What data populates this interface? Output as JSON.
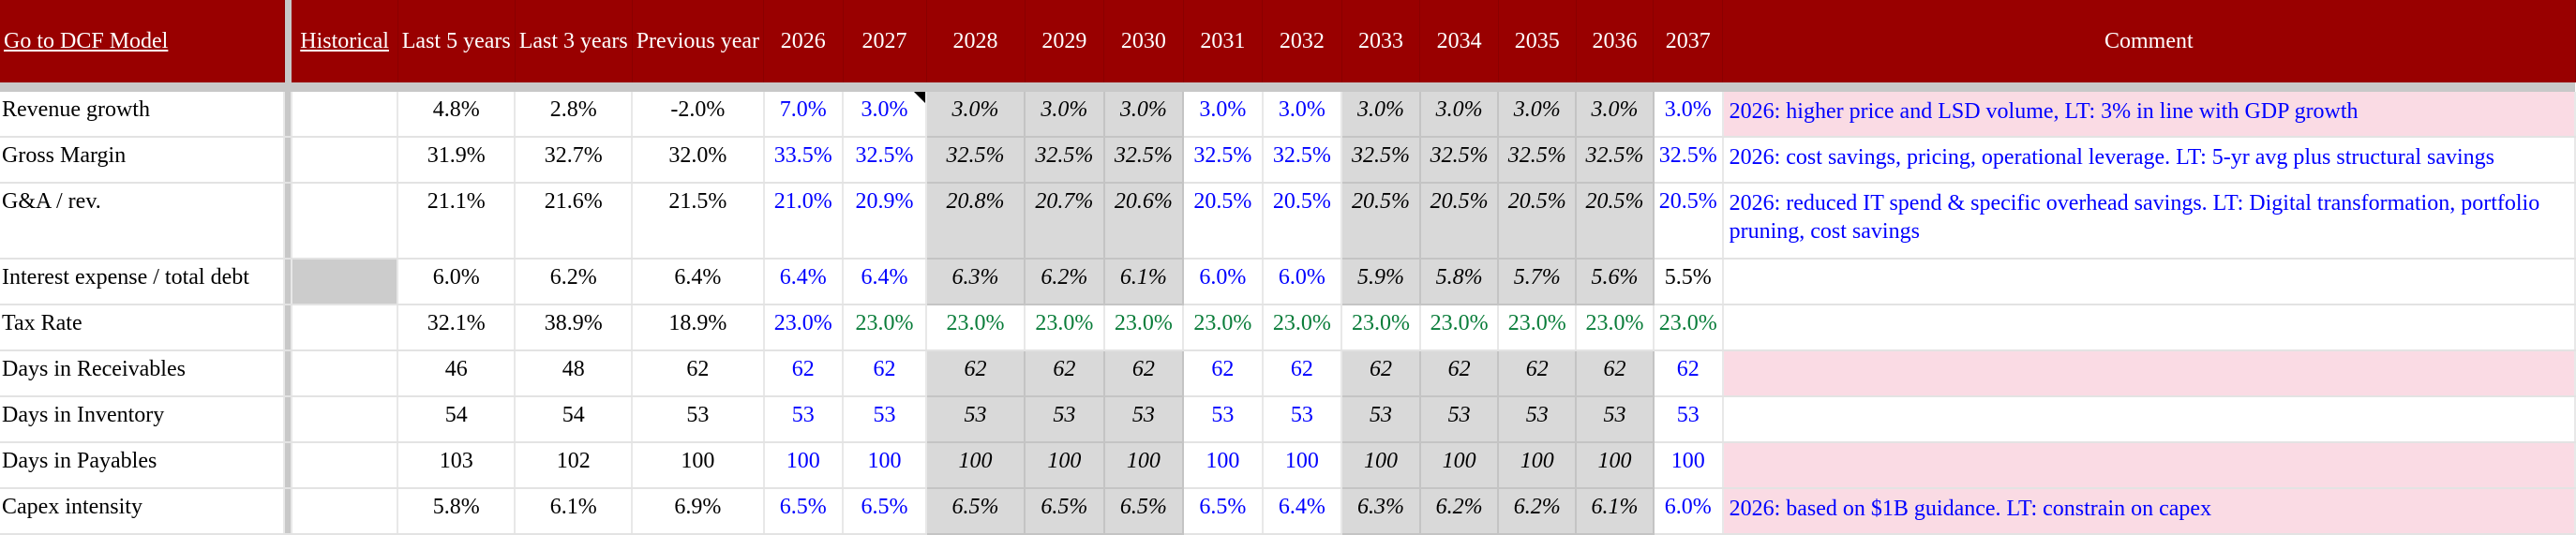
{
  "header": {
    "dcf_link": "Go to DCF Model",
    "historical_link": "Historical",
    "last5": "Last 5 years",
    "last3": "Last 3 years",
    "previous": "Previous year",
    "years": [
      "2026",
      "2027",
      "2028",
      "2029",
      "2030",
      "2031",
      "2032",
      "2033",
      "2034",
      "2035",
      "2036",
      "2037"
    ],
    "comment": "Comment"
  },
  "colors": {
    "header_bg": "#990000",
    "input_blue": "#0000ff",
    "link_green": "#0a7d3a",
    "formula_gray": "#d9d9d9",
    "comment_pink": "#fadbe4"
  },
  "rows": [
    {
      "label": "Revenue growth",
      "hist": [
        "4.8%",
        "2.8%",
        "-2.0%"
      ],
      "proj": [
        "7.0%",
        "3.0%",
        "3.0%",
        "3.0%",
        "3.0%",
        "3.0%",
        "3.0%",
        "3.0%",
        "3.0%",
        "3.0%",
        "3.0%",
        "3.0%"
      ],
      "styles": "b b i i i b b i i i i b",
      "comment": "2026: higher price and LSD volume, LT: 3% in line with GDP growth",
      "comment_highlight": true
    },
    {
      "label": "Gross Margin",
      "hist": [
        "31.9%",
        "32.7%",
        "32.0%"
      ],
      "proj": [
        "33.5%",
        "32.5%",
        "32.5%",
        "32.5%",
        "32.5%",
        "32.5%",
        "32.5%",
        "32.5%",
        "32.5%",
        "32.5%",
        "32.5%",
        "32.5%"
      ],
      "styles": "b b i i i b b i i i i b",
      "comment": "2026: cost savings, pricing, operational leverage. LT: 5-yr avg plus structural savings",
      "comment_highlight": false
    },
    {
      "label": "G&A / rev.",
      "hist": [
        "21.1%",
        "21.6%",
        "21.5%"
      ],
      "proj": [
        "21.0%",
        "20.9%",
        "20.8%",
        "20.7%",
        "20.6%",
        "20.5%",
        "20.5%",
        "20.5%",
        "20.5%",
        "20.5%",
        "20.5%",
        "20.5%"
      ],
      "styles": "b b i i i b b i i i i b",
      "comment": "2026: reduced IT spend & specific overhead savings. LT: Digital transformation, portfolio pruning, cost savings",
      "comment_highlight": false,
      "tall": true
    },
    {
      "label": "Interest expense / total debt",
      "hist": [
        "6.0%",
        "6.2%",
        "6.4%"
      ],
      "proj": [
        "6.4%",
        "6.4%",
        "6.3%",
        "6.2%",
        "6.1%",
        "6.0%",
        "6.0%",
        "5.9%",
        "5.8%",
        "5.7%",
        "5.6%",
        "5.5%"
      ],
      "styles": "b b i i i b b i i i i k",
      "comment": "",
      "comment_highlight": false,
      "hist_shaded": true
    },
    {
      "label": "Tax Rate",
      "hist": [
        "32.1%",
        "38.9%",
        "18.9%"
      ],
      "proj": [
        "23.0%",
        "23.0%",
        "23.0%",
        "23.0%",
        "23.0%",
        "23.0%",
        "23.0%",
        "23.0%",
        "23.0%",
        "23.0%",
        "23.0%",
        "23.0%"
      ],
      "styles": "b g g g g g g g g g g g",
      "comment": "",
      "comment_highlight": false
    },
    {
      "label": "Days in Receivables",
      "hist": [
        "46",
        "48",
        "62"
      ],
      "proj": [
        "62",
        "62",
        "62",
        "62",
        "62",
        "62",
        "62",
        "62",
        "62",
        "62",
        "62",
        "62"
      ],
      "styles": "b b i i i b b i i i i b",
      "comment": "",
      "comment_highlight": true
    },
    {
      "label": "Days in Inventory",
      "hist": [
        "54",
        "54",
        "53"
      ],
      "proj": [
        "53",
        "53",
        "53",
        "53",
        "53",
        "53",
        "53",
        "53",
        "53",
        "53",
        "53",
        "53"
      ],
      "styles": "b b i i i b b i i i i b",
      "comment": "",
      "comment_highlight": false
    },
    {
      "label": "Days in Payables",
      "hist": [
        "103",
        "102",
        "100"
      ],
      "proj": [
        "100",
        "100",
        "100",
        "100",
        "100",
        "100",
        "100",
        "100",
        "100",
        "100",
        "100",
        "100"
      ],
      "styles": "b b i i i b b i i i i b",
      "comment": "",
      "comment_highlight": true
    },
    {
      "label": "Capex intensity",
      "hist": [
        "5.8%",
        "6.1%",
        "6.9%"
      ],
      "proj": [
        "6.5%",
        "6.5%",
        "6.5%",
        "6.5%",
        "6.5%",
        "6.5%",
        "6.4%",
        "6.3%",
        "6.2%",
        "6.2%",
        "6.1%",
        "6.0%"
      ],
      "styles": "b b i i i b b i i i i b",
      "comment": "2026: based on $1B guidance. LT: constrain on capex",
      "comment_highlight": true
    }
  ]
}
